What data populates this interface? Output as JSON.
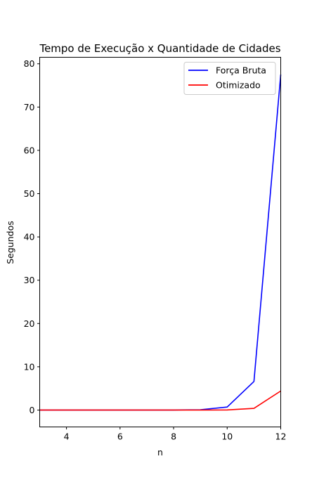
{
  "chart_data": {
    "type": "line",
    "title": "Tempo de Execução x Quantidade de Cidades",
    "xlabel": "n",
    "ylabel": "Segundos",
    "xlim": [
      3,
      12
    ],
    "ylim": [
      -3.9,
      81.5
    ],
    "xticks": [
      4,
      6,
      8,
      10,
      12
    ],
    "yticks": [
      0,
      10,
      20,
      30,
      40,
      50,
      60,
      70,
      80
    ],
    "grid": false,
    "legend_position": "top-right",
    "x": [
      3,
      4,
      5,
      6,
      7,
      8,
      9,
      10,
      11,
      12
    ],
    "series": [
      {
        "name": "Força Bruta",
        "color": "#0000ff",
        "values": [
          0.0,
          0.0,
          0.0,
          0.0,
          0.0,
          0.01,
          0.08,
          0.7,
          6.6,
          77.5
        ]
      },
      {
        "name": "Otimizado",
        "color": "#ff0000",
        "values": [
          0.0,
          0.0,
          0.0,
          0.0,
          0.0,
          0.0,
          0.0,
          0.03,
          0.4,
          4.4
        ]
      }
    ]
  }
}
